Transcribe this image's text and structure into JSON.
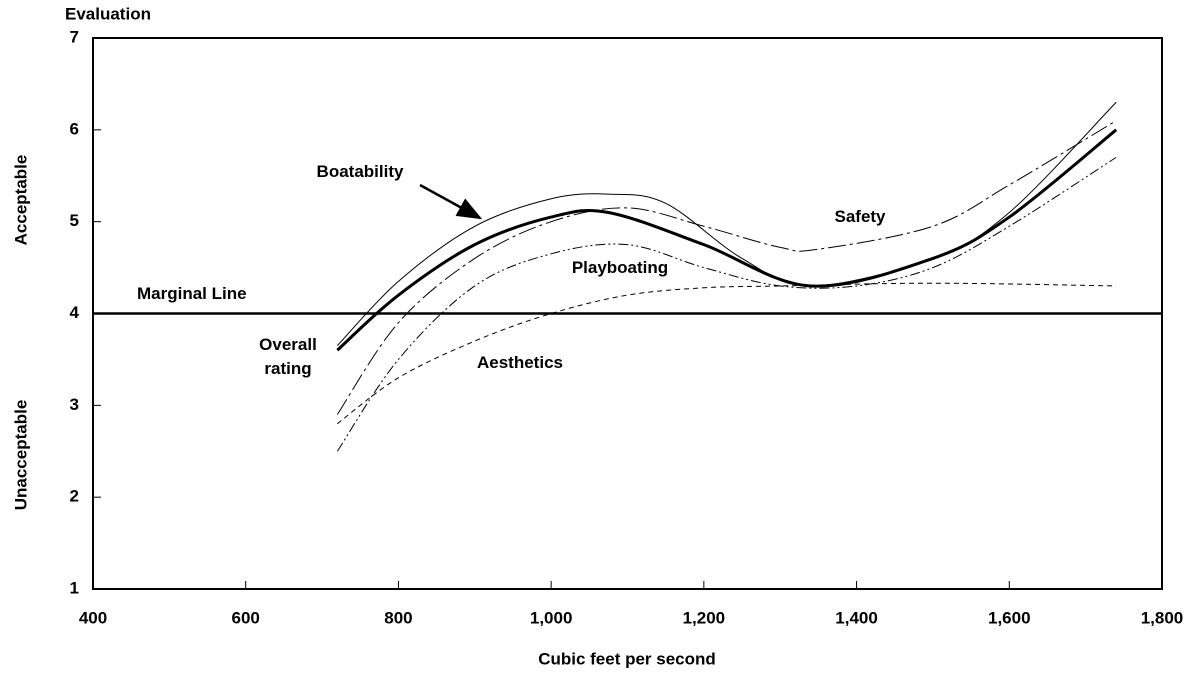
{
  "chart_data": {
    "type": "line",
    "y_axis_title": "Evaluation",
    "y_band_labels": [
      "Acceptable",
      "Unacceptable"
    ],
    "x_axis_title": "Cubic feet per second",
    "xlim": [
      400,
      1800
    ],
    "xticks": [
      400,
      600,
      800,
      {
        "value": 1000,
        "label": "1,000"
      },
      {
        "value": 1200,
        "label": "1,200"
      },
      {
        "value": 1400,
        "label": "1,400"
      },
      {
        "value": 1600,
        "label": "1,600"
      },
      {
        "value": 1800,
        "label": "1,800"
      }
    ],
    "ylim": [
      1,
      7
    ],
    "yticks": [
      1,
      2,
      3,
      4,
      5,
      6,
      7
    ],
    "reference_line": {
      "value": 4,
      "label": "Marginal Line"
    },
    "series": [
      {
        "name": "Boatability",
        "color": "#000000",
        "width": 1,
        "dash": "none",
        "x": [
          720,
          800,
          900,
          1000,
          1075,
          1150,
          1250,
          1340,
          1500,
          1600,
          1740
        ],
        "values": [
          3.65,
          4.35,
          4.95,
          5.25,
          5.3,
          5.2,
          4.6,
          4.3,
          4.6,
          5.1,
          6.3
        ]
      },
      {
        "name": "Overall rating",
        "color": "#000000",
        "width": 3,
        "dash": "none",
        "x": [
          720,
          800,
          900,
          1000,
          1075,
          1200,
          1340,
          1500,
          1600,
          1740
        ],
        "values": [
          3.6,
          4.2,
          4.75,
          5.05,
          5.1,
          4.75,
          4.3,
          4.6,
          5.05,
          6.0
        ]
      },
      {
        "name": "Safety",
        "color": "#000000",
        "width": 1,
        "dash": "18 4 3 4",
        "x": [
          720,
          800,
          900,
          1000,
          1100,
          1200,
          1300,
          1350,
          1500,
          1600,
          1740
        ],
        "values": [
          2.9,
          3.9,
          4.6,
          5.0,
          5.15,
          4.95,
          4.72,
          4.7,
          4.95,
          5.4,
          6.1
        ]
      },
      {
        "name": "Playboating",
        "color": "#000000",
        "width": 1,
        "dash": "10 3 2 3 2 3",
        "x": [
          720,
          800,
          900,
          1000,
          1100,
          1200,
          1300,
          1400,
          1500,
          1600,
          1740
        ],
        "values": [
          2.5,
          3.5,
          4.3,
          4.65,
          4.75,
          4.5,
          4.3,
          4.3,
          4.5,
          4.95,
          5.7
        ]
      },
      {
        "name": "Aesthetics",
        "color": "#000000",
        "width": 1,
        "dash": "5 4",
        "x": [
          720,
          800,
          900,
          1000,
          1100,
          1200,
          1300,
          1500,
          1740
        ],
        "values": [
          2.8,
          3.3,
          3.7,
          4.0,
          4.2,
          4.28,
          4.3,
          4.33,
          4.3
        ]
      }
    ]
  }
}
